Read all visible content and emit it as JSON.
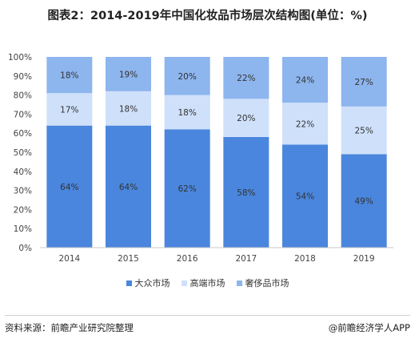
{
  "title": "图表2：2014-2019年中国化妆品市场层次结构图(单位：%)",
  "source": "资料来源：前瞻产业研究院整理",
  "brand": "@前瞻经济学人APP",
  "colors": {
    "mass": "#4a86dd",
    "premium": "#cfe0fa",
    "luxury": "#8db5ee"
  },
  "chart_data": {
    "type": "bar",
    "stacked": true,
    "categories": [
      "2014",
      "2015",
      "2016",
      "2017",
      "2018",
      "2019"
    ],
    "series": [
      {
        "name": "大众市场",
        "values": [
          64,
          64,
          62,
          58,
          54,
          49
        ],
        "labels": [
          "64%",
          "64%",
          "62%",
          "58%",
          "54%",
          "49%"
        ]
      },
      {
        "name": "高端市场",
        "values": [
          17,
          18,
          18,
          20,
          22,
          25
        ],
        "labels": [
          "17%",
          "18%",
          "18%",
          "20%",
          "22%",
          "25%"
        ]
      },
      {
        "name": "奢侈品市场",
        "values": [
          18,
          19,
          20,
          22,
          24,
          27
        ],
        "labels": [
          "18%",
          "19%",
          "20%",
          "22%",
          "24%",
          "27%"
        ]
      }
    ],
    "ylim": [
      0,
      100
    ],
    "yticks": [
      "0%",
      "10%",
      "20%",
      "30%",
      "40%",
      "50%",
      "60%",
      "70%",
      "80%",
      "90%",
      "100%"
    ],
    "grid": false,
    "legend_position": "bottom"
  }
}
